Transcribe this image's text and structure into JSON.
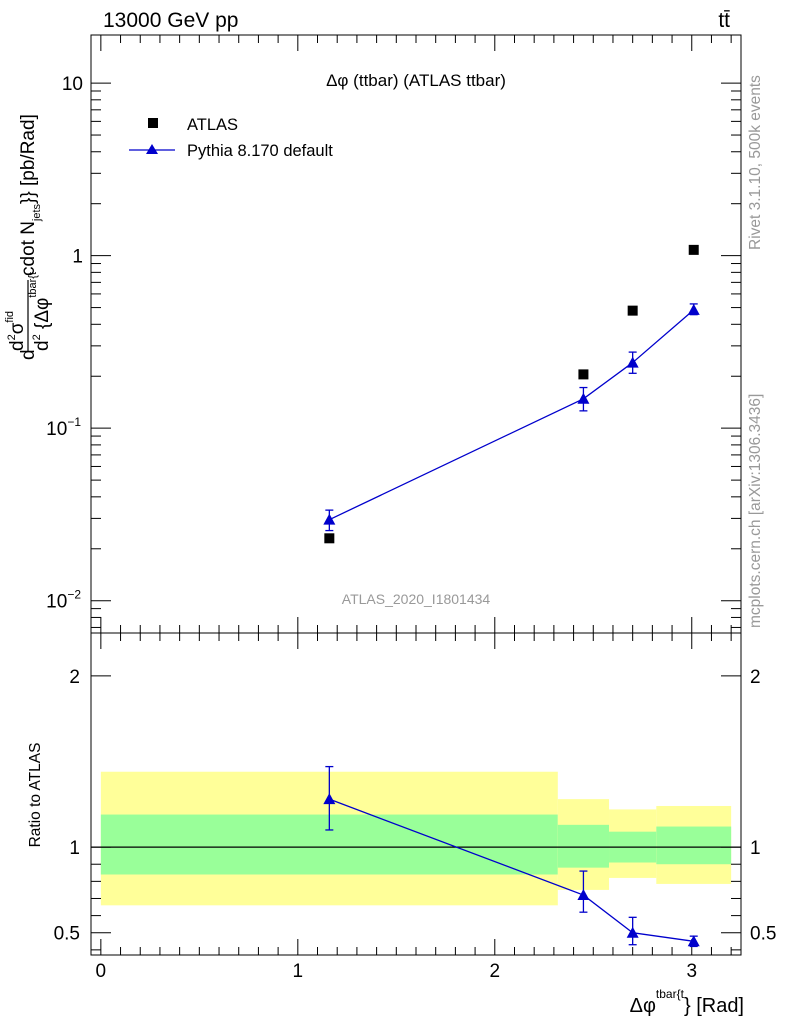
{
  "header": {
    "left": "13000 GeV pp",
    "right": "tt̄"
  },
  "side_labels": {
    "rivet": "Rivet 3.1.10,  500k events",
    "mcplots": "mcplots.cern.ch [arXiv:1306.3436]"
  },
  "chart_data": [
    {
      "type": "scatter",
      "panel": "main",
      "title": "Δφ (ttbar) (ATLAS ttbar)",
      "watermark": "ATLAS_2020_I1801434",
      "ylabel": "d d²σ^fid / d² {Δφ^tbar{t} cdot N_jets}} [pb/Rad]",
      "yscale": "log",
      "xlim": [
        -0.05,
        3.25
      ],
      "ylim": [
        0.0065,
        19
      ],
      "y_ticks": [
        {
          "value": 10,
          "label": "10"
        },
        {
          "value": 1,
          "label": "1"
        },
        {
          "value": 0.1,
          "label": "10",
          "exp": "−1"
        },
        {
          "value": 0.01,
          "label": "10",
          "exp": "−2"
        }
      ],
      "legend": {
        "position": "top-left"
      },
      "series": [
        {
          "name": "ATLAS",
          "marker": "square",
          "color": "#000000",
          "x": [
            1.16,
            2.45,
            2.7,
            3.01
          ],
          "y": [
            0.023,
            0.205,
            0.48,
            1.08
          ]
        },
        {
          "name": "Pythia 8.170 default",
          "marker": "triangle",
          "color": "#0000cc",
          "line": true,
          "x": [
            1.16,
            2.45,
            2.7,
            3.01
          ],
          "y": [
            0.0295,
            0.148,
            0.24,
            0.485
          ],
          "err_low": [
            0.0255,
            0.126,
            0.208,
            0.455
          ],
          "err_high": [
            0.0335,
            0.172,
            0.276,
            0.525
          ]
        }
      ]
    },
    {
      "type": "line",
      "panel": "ratio",
      "ylabel": "Ratio to ATLAS",
      "xlabel": "Δφ^tbar{t}} [Rad]",
      "xlim": [
        -0.05,
        3.25
      ],
      "ylim": [
        0.37,
        2.25
      ],
      "x_ticks": [
        0,
        1,
        2,
        3
      ],
      "y_ticks": [
        {
          "value": 2,
          "label": "2"
        },
        {
          "value": 1,
          "label": "1"
        },
        {
          "value": 0.5,
          "label": "0.5"
        }
      ],
      "bands": [
        {
          "x0": 0.0,
          "x1": 2.32,
          "yellow": [
            0.66,
            1.44
          ],
          "green": [
            0.84,
            1.19
          ]
        },
        {
          "x0": 2.32,
          "x1": 2.58,
          "yellow": [
            0.75,
            1.28
          ],
          "green": [
            0.88,
            1.13
          ]
        },
        {
          "x0": 2.58,
          "x1": 2.82,
          "yellow": [
            0.82,
            1.22
          ],
          "green": [
            0.91,
            1.09
          ]
        },
        {
          "x0": 2.82,
          "x1": 3.2,
          "yellow": [
            0.785,
            1.24
          ],
          "green": [
            0.9,
            1.12
          ]
        }
      ],
      "series": [
        {
          "name": "Pythia 8.170 default",
          "color": "#0000cc",
          "x": [
            1.16,
            2.45,
            2.7,
            3.01
          ],
          "y": [
            1.28,
            0.72,
            0.5,
            0.45
          ],
          "err_low": [
            1.1,
            0.62,
            0.43,
            0.42
          ],
          "err_high": [
            1.47,
            0.86,
            0.59,
            0.48
          ]
        }
      ]
    }
  ]
}
